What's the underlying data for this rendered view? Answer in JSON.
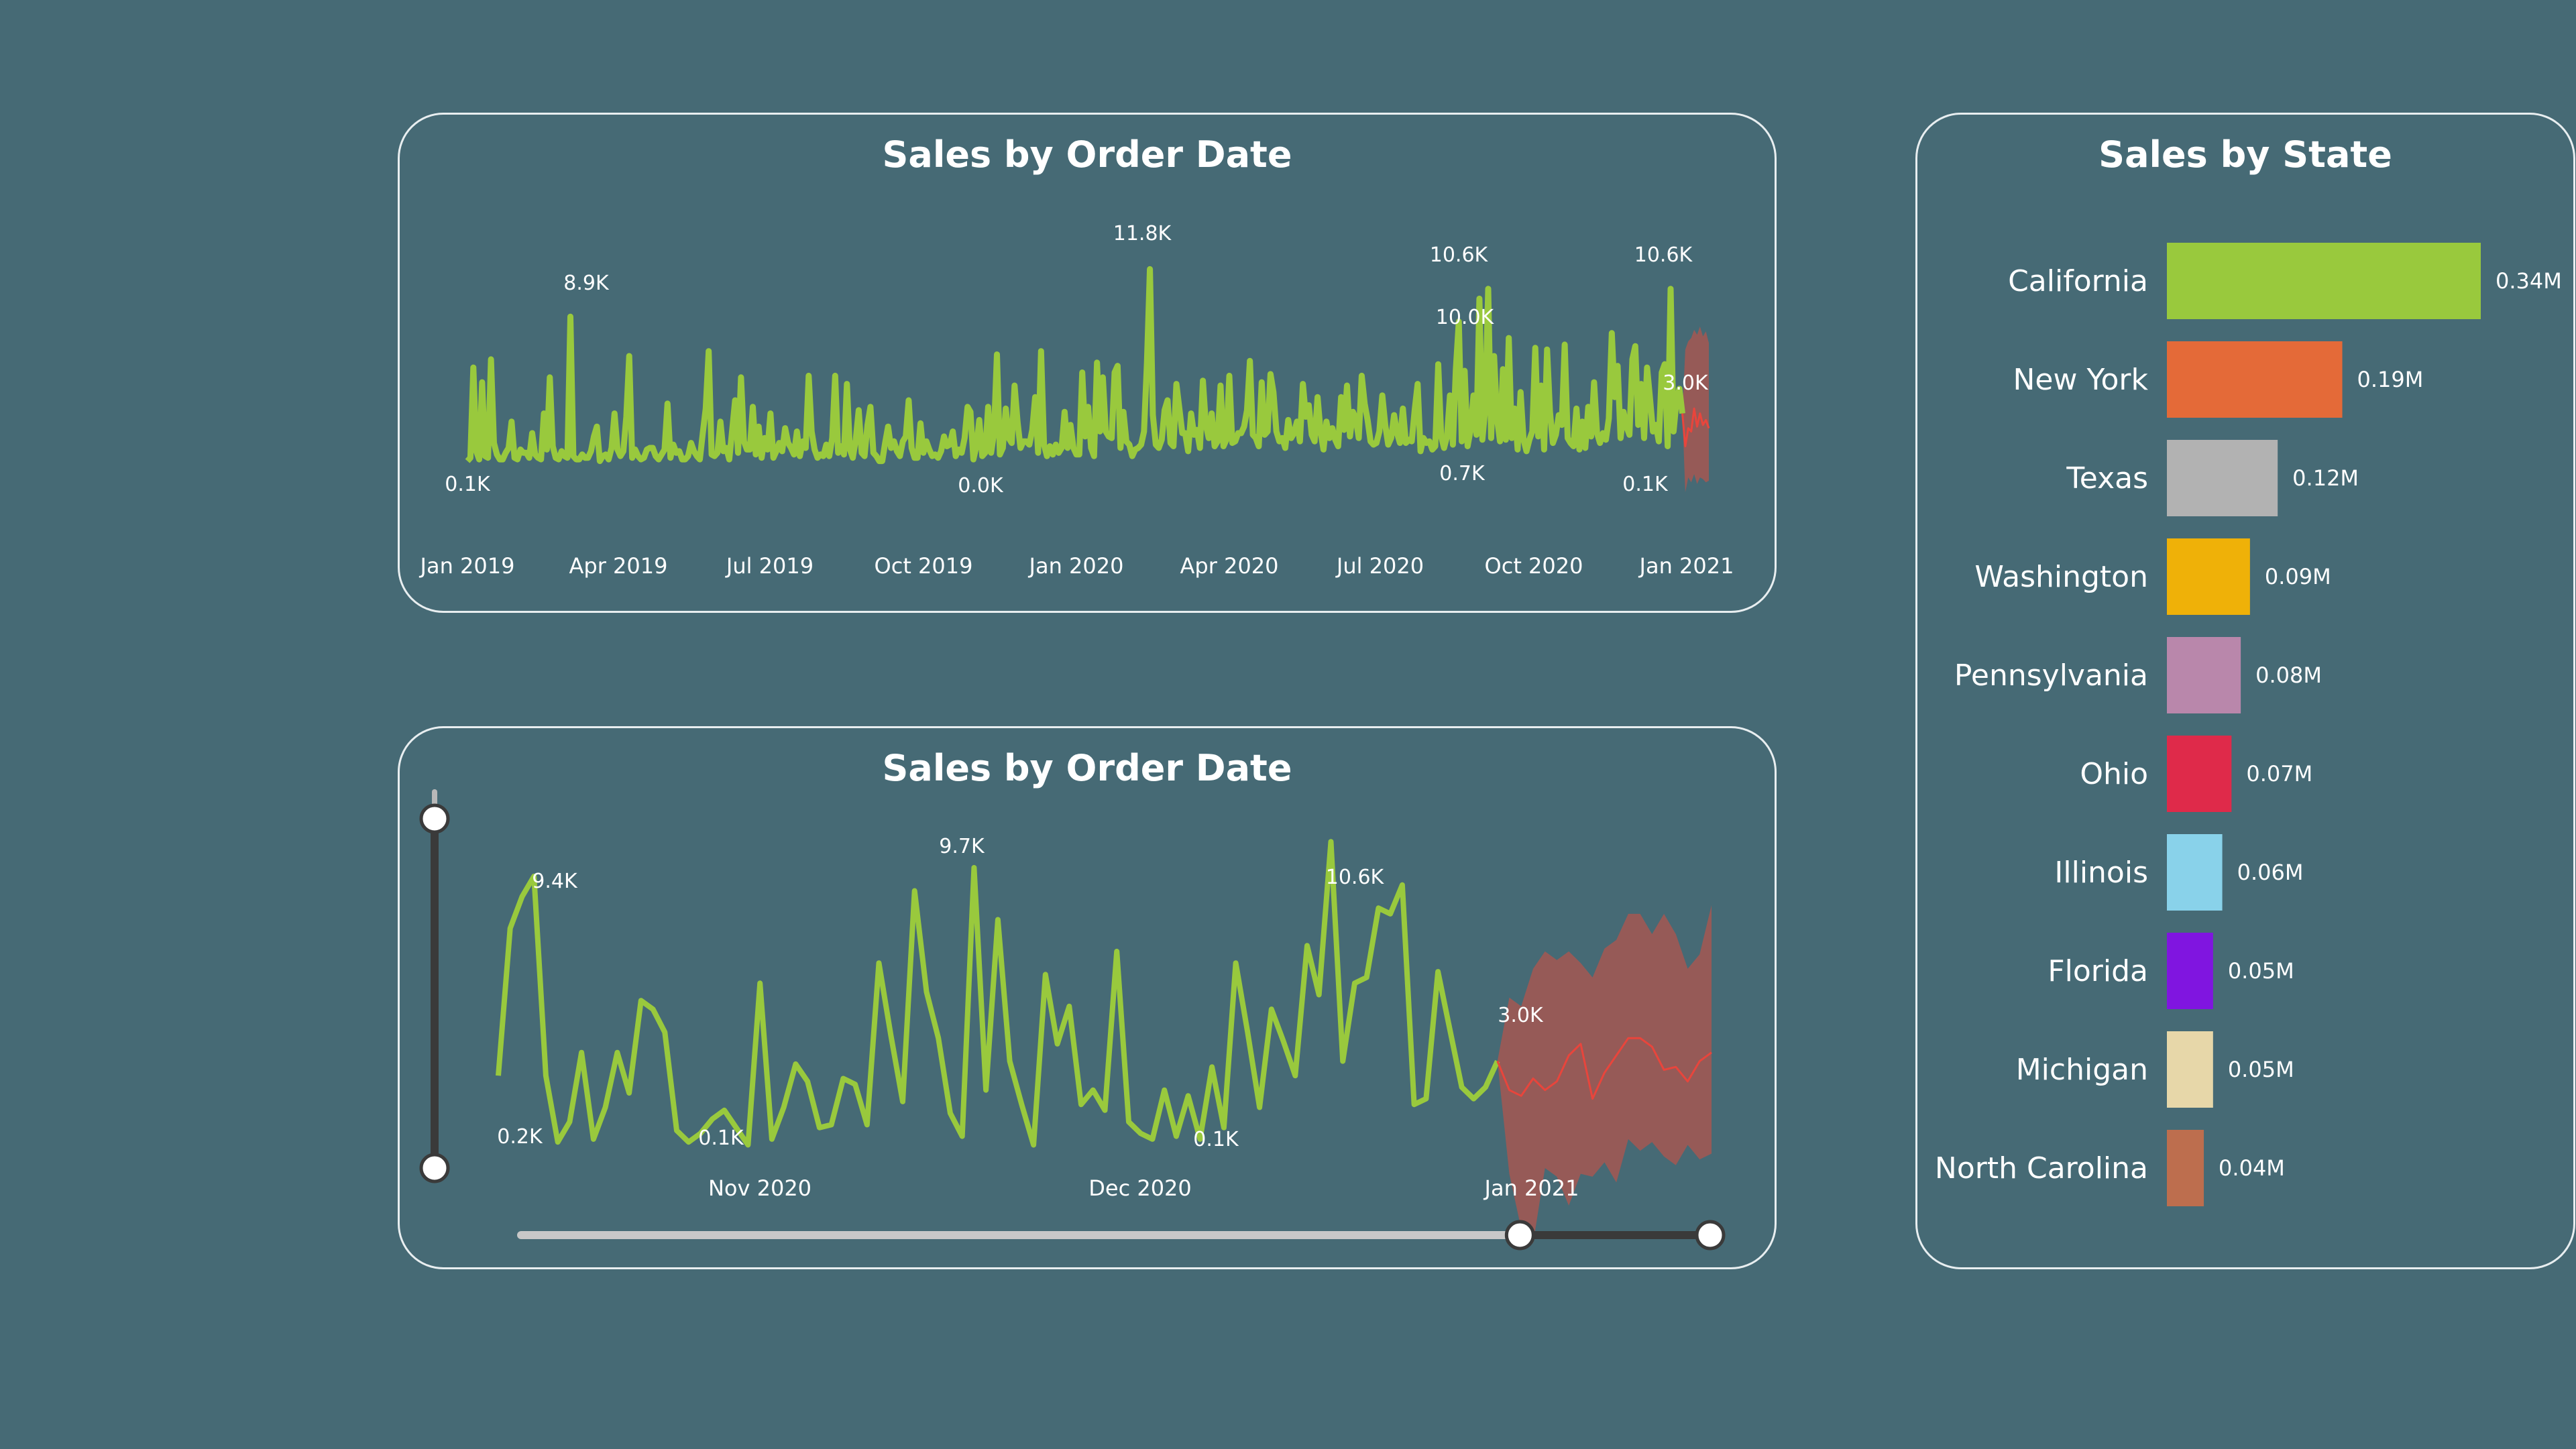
{
  "colors": {
    "background": "#466a75",
    "line": "#99c93d",
    "forecast_line": "#e8453c",
    "forecast_band": "#9b5a55",
    "card_border": "#e8eef0",
    "text": "#ffffff",
    "slider_track": "#3a3a3a",
    "slider_selected": "#c8c8c8"
  },
  "chart_data": [
    {
      "id": "top",
      "type": "line",
      "title": "Sales by Order Date",
      "x_ticks": [
        "Jan 2019",
        "Apr 2019",
        "Jul 2019",
        "Oct 2019",
        "Jan 2020",
        "Apr 2020",
        "Jul 2020",
        "Oct 2020",
        "Jan 2021"
      ],
      "ylim": [
        0,
        13000
      ],
      "grid": false,
      "series": [
        {
          "values": [
            100,
            300,
            5800,
            700,
            200,
            4900,
            400,
            300,
            6300,
            1200,
            500,
            200,
            200,
            600,
            900,
            2500,
            300,
            200,
            800,
            600,
            600,
            300,
            1800,
            500,
            300,
            200,
            3000,
            800,
            5200,
            1000,
            300,
            200,
            700,
            400,
            300,
            8900,
            400,
            200,
            200,
            500,
            300,
            300,
            700,
            1600,
            2200,
            100,
            400,
            500,
            200,
            900,
            3000,
            800,
            400,
            700,
            2800,
            6500,
            300,
            800,
            400,
            200,
            300,
            800,
            900,
            900,
            400,
            200,
            500,
            800,
            3600,
            300,
            1100,
            600,
            700,
            200,
            200,
            400,
            1200,
            700,
            400,
            200,
            1800,
            3300,
            6800,
            500,
            400,
            600,
            2500,
            700,
            900,
            200,
            2000,
            3800,
            600,
            5200,
            1300,
            800,
            800,
            3400,
            500,
            2200,
            300,
            1500,
            800,
            3000,
            300,
            700,
            1200,
            700,
            2100,
            1200,
            900,
            500,
            1900,
            400,
            1300,
            900,
            5300,
            1900,
            800,
            300,
            500,
            400,
            1100,
            400,
            1500,
            5300,
            600,
            1000,
            500,
            4800,
            800,
            300,
            1400,
            3200,
            600,
            400,
            2300,
            3400,
            600,
            400,
            100,
            100,
            1200,
            2200,
            900,
            1300,
            700,
            400,
            1300,
            1600,
            3800,
            900,
            300,
            300,
            2400,
            600,
            1300,
            800,
            400,
            500,
            300,
            700,
            1600,
            1000,
            1100,
            1900,
            400,
            800,
            600,
            1500,
            3400,
            3100,
            200,
            1000,
            2600,
            400,
            600,
            3400,
            600,
            1800,
            6600,
            500,
            900,
            3300,
            1500,
            1200,
            4700,
            2500,
            900,
            1300,
            1300,
            1100,
            2000,
            4000,
            600,
            6800,
            1100,
            400,
            1000,
            500,
            1100,
            600,
            900,
            3100,
            900,
            2300,
            900,
            500,
            500,
            5500,
            1600,
            3400,
            900,
            400,
            6100,
            1900,
            5200,
            1900,
            1600,
            1500,
            5500,
            5900,
            900,
            3100,
            1300,
            1100,
            400,
            800,
            900,
            1100,
            1900,
            6100,
            11800,
            2900,
            1100,
            900,
            1400,
            3200,
            3800,
            1200,
            1000,
            4800,
            3300,
            1800,
            1800,
            700,
            3000,
            1700,
            2000,
            900,
            5000,
            2300,
            1500,
            3000,
            1000,
            1300,
            4700,
            1000,
            1400,
            5300,
            1200,
            1300,
            1800,
            1800,
            2200,
            3200,
            6200,
            1700,
            1500,
            1000,
            4900,
            1700,
            1900,
            5400,
            4300,
            1900,
            1300,
            1500,
            900,
            2600,
            1500,
            1800,
            2500,
            1300,
            4800,
            2800,
            3500,
            1700,
            1300,
            4000,
            1900,
            800,
            2500,
            1500,
            2100,
            1400,
            1000,
            4000,
            2000,
            4700,
            1600,
            3100,
            2700,
            1500,
            5300,
            3600,
            2600,
            1300,
            1100,
            1200,
            1900,
            4100,
            2300,
            1100,
            1500,
            2900,
            1800,
            1200,
            3300,
            1200,
            1400,
            1300,
            3200,
            4800,
            700,
            1500,
            1200,
            1300,
            800,
            1000,
            6000,
            1600,
            900,
            1600,
            4100,
            1100,
            5700,
            8600,
            1300,
            5600,
            1000,
            2000,
            4100,
            1700,
            10000,
            1400,
            3300,
            10600,
            1500,
            6500,
            2700,
            1300,
            5700,
            1400,
            7600,
            1500,
            3300,
            800,
            4300,
            1400,
            700,
            1400,
            1900,
            7000,
            1600,
            4700,
            800,
            6900,
            3100,
            1200,
            1700,
            2900,
            2300,
            7200,
            1500,
            1200,
            1000,
            3300,
            800,
            2500,
            900,
            3400,
            1600,
            4900,
            1800,
            1200,
            1800,
            1400,
            2700,
            7900,
            4000,
            5900,
            1500,
            3100,
            2200,
            1700,
            6300,
            7100,
            2300,
            4800,
            1500,
            5800,
            3900,
            1900,
            2300,
            1300,
            5500,
            6000,
            1000,
            10600,
            1900,
            3800,
            4500,
            3000
          ]
        }
      ],
      "forecast": {
        "values": [
          1000,
          2100,
          1900,
          3300,
          2200,
          3000,
          2300,
          2600,
          2100
        ],
        "lower": [
          -1800,
          -900,
          -1200,
          -700,
          -1300,
          -900,
          -1000,
          -1200,
          -1100
        ],
        "upper": [
          6900,
          7400,
          7600,
          8100,
          7800,
          8300,
          7700,
          8000,
          7300
        ]
      },
      "data_labels": [
        "8.9K",
        "11.8K",
        "10.6K",
        "10.0K",
        "10.6K",
        "3.0K",
        "0.1K",
        "0.0K",
        "0.7K",
        "0.1K"
      ]
    },
    {
      "id": "bottom",
      "type": "line",
      "title": "Sales by Order Date",
      "x_ticks": [
        "Nov 2020",
        "Dec 2020",
        "Jan 2021"
      ],
      "ylim": [
        -700,
        11000
      ],
      "grid": false,
      "series": [
        {
          "values": [
            2500,
            7600,
            8700,
            9400,
            2500,
            200,
            900,
            3300,
            300,
            1400,
            3300,
            1900,
            5100,
            4800,
            4000,
            600,
            200,
            500,
            1000,
            1300,
            700,
            100,
            5700,
            300,
            1400,
            2900,
            2300,
            700,
            800,
            2400,
            2200,
            800,
            6400,
            3900,
            1600,
            8900,
            5400,
            3800,
            1200,
            400,
            9700,
            2000,
            7900,
            3000,
            1500,
            100,
            6000,
            3600,
            4900,
            1500,
            2000,
            1300,
            6800,
            900,
            500,
            300,
            2000,
            400,
            1800,
            300,
            2800,
            700,
            6400,
            4000,
            1400,
            4800,
            3700,
            2500,
            7000,
            5300,
            10600,
            3000,
            5700,
            5900,
            8300,
            8100,
            9100,
            1500,
            1700,
            6100,
            4100,
            2100,
            1700,
            2100,
            3000
          ]
        }
      ],
      "forecast": {
        "values": [
          2000,
          1800,
          2400,
          2000,
          2300,
          3200,
          3600,
          1700,
          2600,
          3200,
          3800,
          3800,
          3500,
          2700,
          2800,
          2300,
          3000,
          3300
        ],
        "lower": [
          -900,
          -2800,
          -3300,
          -700,
          -1000,
          -2000,
          -900,
          -1000,
          -500,
          -1200,
          300,
          -100,
          200,
          -300,
          -600,
          100,
          -400,
          -200
        ],
        "upper": [
          5200,
          4900,
          6200,
          6800,
          6500,
          6800,
          6400,
          5900,
          6900,
          7200,
          8100,
          8100,
          7400,
          8100,
          7400,
          6200,
          6700,
          8400
        ]
      },
      "data_labels": [
        "9.4K",
        "9.7K",
        "10.6K",
        "3.0K",
        "0.2K",
        "0.1K",
        "0.1K"
      ],
      "range_slider": {
        "start": 0.84,
        "end": 1.0
      },
      "vertical_slider": {
        "start": 0.0,
        "end": 1.0
      }
    },
    {
      "id": "state",
      "type": "bar",
      "orientation": "horizontal",
      "title": "Sales by State",
      "categories": [
        "California",
        "New York",
        "Texas",
        "Washington",
        "Pennsylvania",
        "Ohio",
        "Illinois",
        "Florida",
        "Michigan",
        "North Carolina"
      ],
      "values": [
        0.34,
        0.19,
        0.12,
        0.09,
        0.08,
        0.07,
        0.06,
        0.05,
        0.05,
        0.04
      ],
      "value_labels": [
        "0.34M",
        "0.19M",
        "0.12M",
        "0.09M",
        "0.08M",
        "0.07M",
        "0.06M",
        "0.05M",
        "0.05M",
        "0.04M"
      ],
      "bar_colors": [
        "#99c93d",
        "#e46a38",
        "#b2b2b2",
        "#efb108",
        "#b987ab",
        "#df2a4a",
        "#89d2ea",
        "#8015e0",
        "#e7d7a9",
        "#bd6e4e"
      ],
      "xlim": [
        0,
        0.34
      ]
    }
  ]
}
